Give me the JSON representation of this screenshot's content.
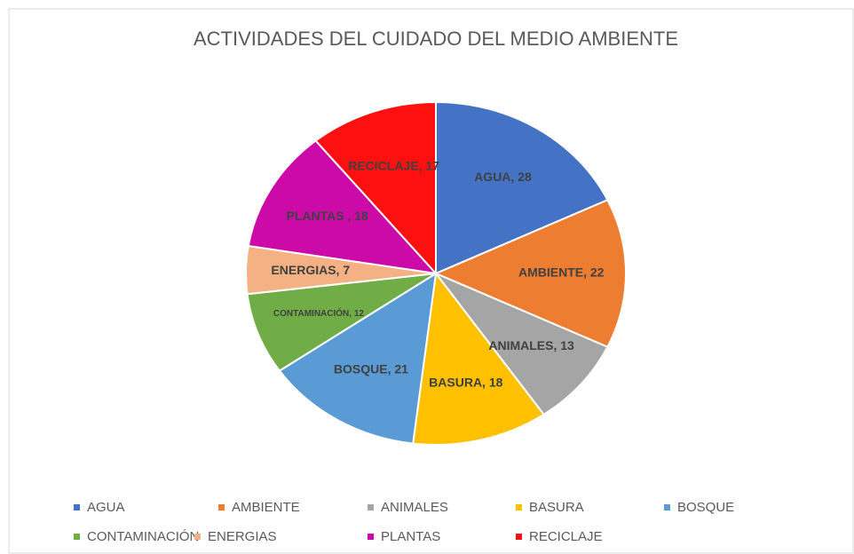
{
  "chart_data": {
    "type": "pie",
    "title": "ACTIVIDADES DEL CUIDADO DEL MEDIO AMBIENTE",
    "categories": [
      "AGUA",
      "AMBIENTE",
      "ANIMALES",
      "BASURA",
      "BOSQUE",
      "CONTAMINACIÓN",
      "ENERGIAS",
      "PLANTAS",
      "RECICLAJE"
    ],
    "values": [
      28,
      22,
      13,
      18,
      21,
      12,
      7,
      18,
      17
    ],
    "value_labels": [
      "AGUA, 28",
      "AMBIENTE, 22",
      "ANIMALES, 13",
      "BASURA, 18",
      "BOSQUE, 21",
      "CONTAMINACIÓN, 12",
      "ENERGIAS, 7",
      "PLANTAS , 18",
      "RECICLAJE, 17"
    ],
    "colors": [
      "#4472c4",
      "#ed7d31",
      "#a5a5a5",
      "#ffc000",
      "#5b9bd5",
      "#70ad47",
      "#f4b183",
      "#cc0aa8",
      "#ff1010"
    ],
    "legend": "bottom"
  }
}
